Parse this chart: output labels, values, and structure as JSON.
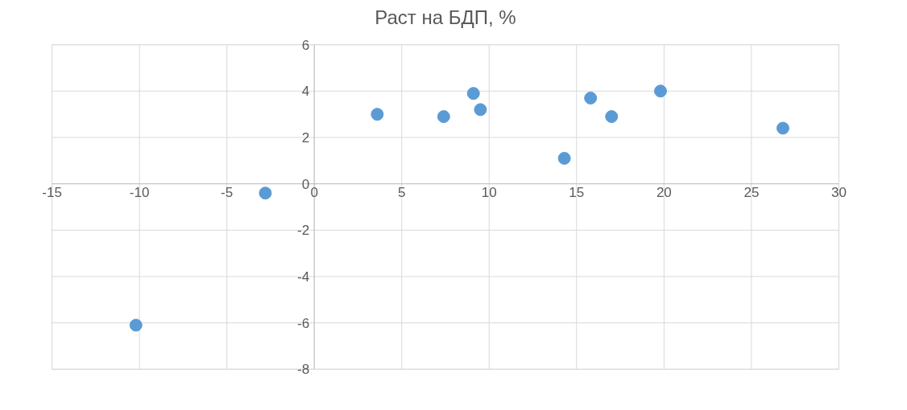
{
  "chart_data": {
    "type": "scatter",
    "title": "Раст на БДП, %",
    "x": [
      -10.2,
      -2.8,
      3.6,
      7.4,
      9.1,
      9.5,
      14.3,
      15.8,
      17.0,
      19.8,
      26.8
    ],
    "series": [
      {
        "color": "#5b9bd5",
        "values": [
          -6.1,
          -0.4,
          3.0,
          2.9,
          3.9,
          3.2,
          1.1,
          3.7,
          2.9,
          4.0,
          2.4
        ]
      }
    ],
    "xlim": [
      -15,
      30
    ],
    "xticks": [
      -15,
      -10,
      -5,
      0,
      5,
      10,
      15,
      20,
      25,
      30
    ],
    "ylim": [
      -8,
      6
    ],
    "yticks": [
      -8,
      -6,
      -4,
      -2,
      0,
      2,
      4,
      6
    ],
    "grid": true,
    "marker": "circle"
  }
}
